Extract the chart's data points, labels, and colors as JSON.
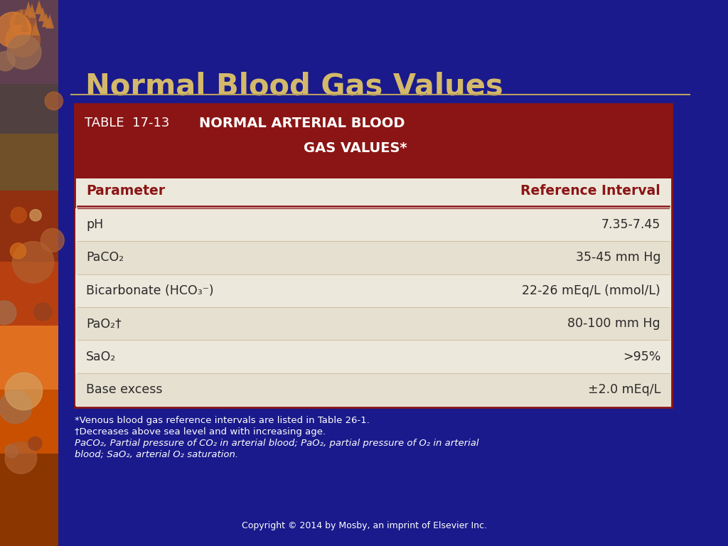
{
  "title": "Normal Blood Gas Values",
  "title_color": "#D4B96A",
  "title_fontsize": 30,
  "slide_bg": "#1a1a8c",
  "table_header_bg": "#8B1515",
  "table_body_bg": "#EDE8DC",
  "col_header_color": "#8B1515",
  "body_text_color": "#2a2a2a",
  "separator_color": "#8B1515",
  "divider_color": "#C0A882",
  "parameters": [
    "pH",
    "PaCO₂",
    "Bicarbonate (HCO₃⁻)",
    "PaO₂†",
    "SaO₂",
    "Base excess"
  ],
  "values": [
    "7.35-7.45",
    "35-45 mm Hg",
    "22-26 mEq/L (mmol/L)",
    "80-100 mm Hg",
    ">95%",
    "±2.0 mEq/L"
  ],
  "col_headers": [
    "Parameter",
    "Reference Interval"
  ],
  "footnote1": "*Venous blood gas reference intervals are listed in Table 26-1.",
  "footnote2": "†Decreases above sea level and with increasing age.",
  "footnote3": "PaCO₂, Partial pressure of CO₂ in arterial blood; PaO₂, partial pressure of O₂ in arterial",
  "footnote4": "blood; SaO₂, arterial O₂ saturation.",
  "copyright": "Copyright © 2014 by Mosby, an imprint of Elsevier Inc.",
  "border_color": "#8B1515",
  "header_label": "TABLE  17-13",
  "header_title1": "NORMAL ARTERIAL BLOOD",
  "header_title2": "GAS VALUES*"
}
